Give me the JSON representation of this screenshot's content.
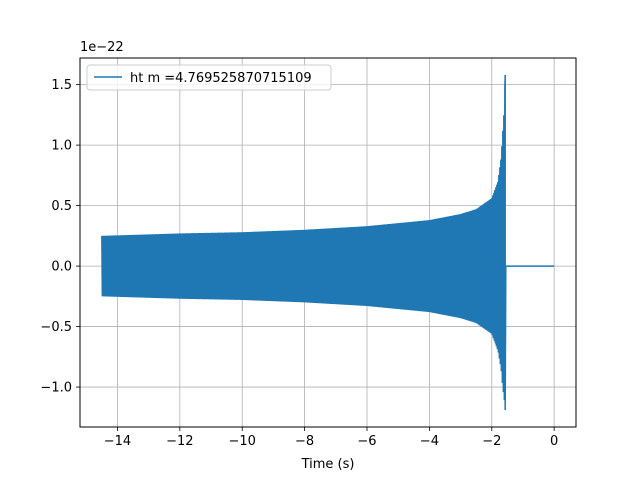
{
  "chart_data": {
    "type": "line",
    "title": "",
    "xlabel": "Time (s)",
    "ylabel": "",
    "y_offset_label": "1e−22",
    "xlim": [
      -15.2,
      0.7
    ],
    "ylim": [
      -1.33,
      1.72
    ],
    "x_ticks": [
      -14,
      -12,
      -10,
      -8,
      -6,
      -4,
      -2,
      0
    ],
    "x_tick_labels": [
      "−14",
      "−12",
      "−10",
      "−8",
      "−6",
      "−4",
      "−2",
      "0"
    ],
    "y_ticks": [
      -1.0,
      -0.5,
      0.0,
      0.5,
      1.0,
      1.5
    ],
    "y_tick_labels": [
      "−1.0",
      "−0.5",
      "0.0",
      "0.5",
      "1.0",
      "1.5"
    ],
    "grid": true,
    "legend_position": "top-left",
    "series": [
      {
        "name": "ht m =4.769525870715109",
        "color": "#1f77b4",
        "signal_start": -14.5,
        "merger_time": -1.55,
        "end_time": 0.0,
        "upper_envelope": [
          [
            -14.5,
            0.25
          ],
          [
            -12,
            0.27
          ],
          [
            -10,
            0.28
          ],
          [
            -8,
            0.3
          ],
          [
            -6,
            0.33
          ],
          [
            -4,
            0.38
          ],
          [
            -3,
            0.43
          ],
          [
            -2.5,
            0.47
          ],
          [
            -2,
            0.56
          ],
          [
            -1.8,
            0.7
          ],
          [
            -1.7,
            0.9
          ],
          [
            -1.65,
            1.1
          ],
          [
            -1.6,
            1.3
          ],
          [
            -1.57,
            1.58
          ]
        ],
        "lower_envelope": [
          [
            -14.5,
            -0.25
          ],
          [
            -12,
            -0.27
          ],
          [
            -10,
            -0.28
          ],
          [
            -8,
            -0.3
          ],
          [
            -6,
            -0.33
          ],
          [
            -4,
            -0.38
          ],
          [
            -3,
            -0.43
          ],
          [
            -2.5,
            -0.47
          ],
          [
            -2,
            -0.56
          ],
          [
            -1.8,
            -0.7
          ],
          [
            -1.7,
            -0.85
          ],
          [
            -1.65,
            -1.0
          ],
          [
            -1.6,
            -1.1
          ],
          [
            -1.57,
            -1.19
          ]
        ]
      }
    ]
  }
}
